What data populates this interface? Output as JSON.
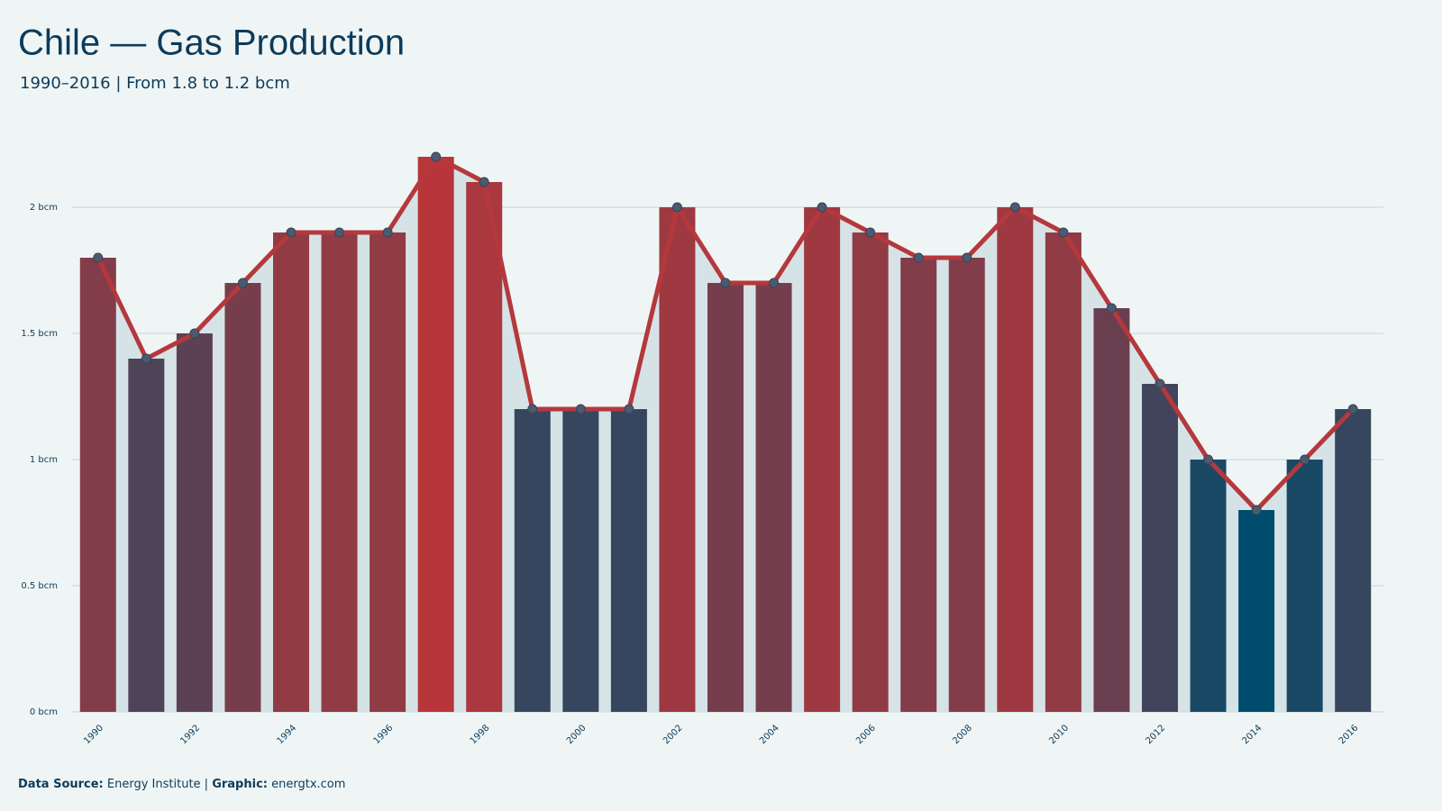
{
  "chart_data": {
    "type": "bar-line",
    "title": "Chile — Gas Production",
    "subtitle": "1990–2016 | From 1.8 to 1.2 bcm",
    "categories": [
      "1990",
      null,
      "1992",
      null,
      "1994",
      null,
      "1996",
      null,
      "1998",
      null,
      "2000",
      null,
      "2002",
      null,
      "2004",
      null,
      "2006",
      null,
      "2008",
      null,
      "2010",
      null,
      "2012",
      null,
      "2014",
      null,
      "2016"
    ],
    "values": [
      1.8,
      1.4,
      1.5,
      1.7,
      1.9,
      1.9,
      1.9,
      2.2,
      2.1,
      1.2,
      1.2,
      1.2,
      2.0,
      1.7,
      1.7,
      2.0,
      1.9,
      1.8,
      1.8,
      2.0,
      1.9,
      1.6,
      1.3,
      1.0,
      0.8,
      1.0,
      1.2
    ],
    "color_scale": [
      "#004c6d",
      "#b8363a"
    ],
    "line_color": "#b5383c",
    "area_color": "#d5e3e7",
    "point_color": "#4b5a70",
    "ylim": [
      0,
      2.3
    ],
    "yticks": [
      {
        "value": 0,
        "label": "0 bcm"
      },
      {
        "value": 0.5,
        "label": "0.5 bcm"
      },
      {
        "value": 1,
        "label": "1 bcm"
      },
      {
        "value": 1.5,
        "label": "1.5 bcm"
      },
      {
        "value": 2,
        "label": "2 bcm"
      }
    ],
    "grid": true,
    "source_label": "Data Source:",
    "source": "Energy Institute |",
    "graphic_label": "Graphic:",
    "graphic": "energtx.com"
  }
}
